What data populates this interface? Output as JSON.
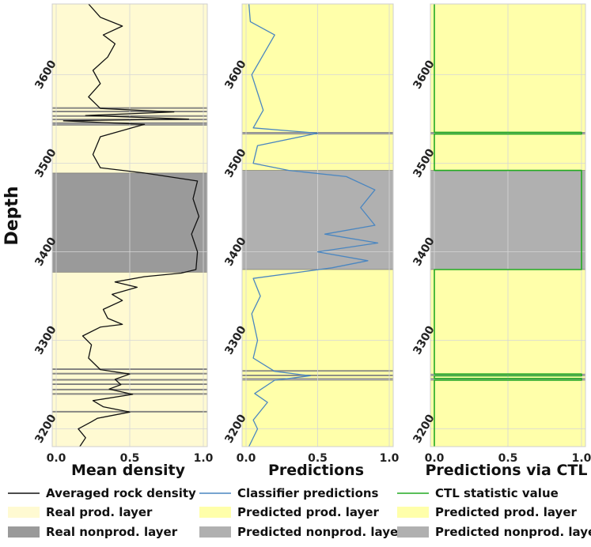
{
  "colors": {
    "prod_layer": "#fffad2",
    "pred_prod_layer": "#ffffaa",
    "nonprod_real": "#9a9a9a",
    "nonprod_pred": "#b0b0b0",
    "density_line": "#111111",
    "classifier_line": "#4a86c0",
    "ctl_line": "#22aa22",
    "grid": "#d6d6d6"
  },
  "chart_data": [
    {
      "type": "line",
      "orientation": "vertical-depth",
      "xlabel": "Mean density",
      "ylabel": "Depth",
      "xlim": [
        0,
        1
      ],
      "ylim": [
        3180,
        3680
      ],
      "xticks": [
        0.0,
        0.5,
        1.0
      ],
      "xtick_labels": [
        "0.0",
        "0.5",
        "1.0"
      ],
      "yticks": [
        3200,
        3300,
        3400,
        3500,
        3600
      ],
      "ytick_labels": [
        "3200",
        "3300",
        "3400",
        "3500",
        "3600"
      ],
      "background_layer": "prod",
      "nonprod_intervals": [
        [
          3377,
          3489
        ],
        [
          3219,
          3220
        ],
        [
          3239,
          3240
        ],
        [
          3244,
          3245
        ],
        [
          3250,
          3251
        ],
        [
          3255,
          3256
        ],
        [
          3262,
          3263
        ],
        [
          3267,
          3268
        ],
        [
          3543,
          3546
        ],
        [
          3549,
          3550
        ],
        [
          3553,
          3554
        ],
        [
          3558,
          3559
        ],
        [
          3562,
          3563
        ]
      ],
      "series": [
        {
          "name": "Averaged rock density",
          "points": [
            [
              0.16,
              3180
            ],
            [
              0.2,
              3190
            ],
            [
              0.15,
              3200
            ],
            [
              0.24,
              3208
            ],
            [
              0.28,
              3212
            ],
            [
              0.5,
              3219
            ],
            [
              0.32,
              3225
            ],
            [
              0.25,
              3232
            ],
            [
              0.52,
              3239
            ],
            [
              0.36,
              3245
            ],
            [
              0.44,
              3250
            ],
            [
              0.4,
              3256
            ],
            [
              0.5,
              3262
            ],
            [
              0.3,
              3267
            ],
            [
              0.22,
              3280
            ],
            [
              0.24,
              3295
            ],
            [
              0.18,
              3305
            ],
            [
              0.3,
              3315
            ],
            [
              0.45,
              3318
            ],
            [
              0.35,
              3325
            ],
            [
              0.32,
              3335
            ],
            [
              0.45,
              3345
            ],
            [
              0.38,
              3352
            ],
            [
              0.55,
              3360
            ],
            [
              0.4,
              3366
            ],
            [
              0.6,
              3372
            ],
            [
              0.85,
              3376
            ],
            [
              0.95,
              3380
            ],
            [
              0.96,
              3400
            ],
            [
              0.92,
              3420
            ],
            [
              0.97,
              3440
            ],
            [
              0.93,
              3460
            ],
            [
              0.96,
              3480
            ],
            [
              0.6,
              3489
            ],
            [
              0.3,
              3495
            ],
            [
              0.25,
              3510
            ],
            [
              0.3,
              3530
            ],
            [
              0.6,
              3544
            ],
            [
              0.05,
              3548
            ],
            [
              0.9,
              3550
            ],
            [
              0.2,
              3554
            ],
            [
              0.8,
              3558
            ],
            [
              0.3,
              3562
            ],
            [
              0.22,
              3575
            ],
            [
              0.3,
              3590
            ],
            [
              0.25,
              3605
            ],
            [
              0.35,
              3620
            ],
            [
              0.4,
              3635
            ],
            [
              0.32,
              3645
            ],
            [
              0.45,
              3655
            ],
            [
              0.3,
              3665
            ],
            [
              0.22,
              3680
            ]
          ]
        }
      ]
    },
    {
      "type": "line",
      "orientation": "vertical-depth",
      "xlabel": "Predictions",
      "xlim": [
        0,
        1
      ],
      "ylim": [
        3180,
        3680
      ],
      "xticks": [
        0.0,
        0.5,
        1.0
      ],
      "xtick_labels": [
        "0.0",
        "0.5",
        "1.0"
      ],
      "yticks": [
        3200,
        3300,
        3400,
        3500,
        3600
      ],
      "ytick_labels": [
        "3200",
        "3300",
        "3400",
        "3500",
        "3600"
      ],
      "background_layer": "pred",
      "nonprod_intervals": [
        [
          3380,
          3492
        ],
        [
          3255,
          3257
        ],
        [
          3260,
          3261
        ],
        [
          3265,
          3266
        ],
        [
          3533,
          3535
        ]
      ],
      "series": [
        {
          "name": "Classifier predictions",
          "points": [
            [
              0.02,
              3180
            ],
            [
              0.08,
              3200
            ],
            [
              0.05,
              3210
            ],
            [
              0.15,
              3230
            ],
            [
              0.06,
              3240
            ],
            [
              0.2,
              3255
            ],
            [
              0.45,
              3260
            ],
            [
              0.2,
              3265
            ],
            [
              0.05,
              3280
            ],
            [
              0.08,
              3300
            ],
            [
              0.04,
              3330
            ],
            [
              0.1,
              3350
            ],
            [
              0.05,
              3370
            ],
            [
              0.6,
              3382
            ],
            [
              0.85,
              3390
            ],
            [
              0.5,
              3400
            ],
            [
              0.92,
              3410
            ],
            [
              0.55,
              3420
            ],
            [
              0.9,
              3430
            ],
            [
              0.8,
              3450
            ],
            [
              0.9,
              3470
            ],
            [
              0.7,
              3485
            ],
            [
              0.3,
              3492
            ],
            [
              0.05,
              3500
            ],
            [
              0.08,
              3520
            ],
            [
              0.5,
              3534
            ],
            [
              0.05,
              3540
            ],
            [
              0.12,
              3560
            ],
            [
              0.04,
              3600
            ],
            [
              0.2,
              3645
            ],
            [
              0.03,
              3660
            ],
            [
              0.02,
              3680
            ]
          ]
        }
      ]
    },
    {
      "type": "line",
      "orientation": "vertical-depth",
      "xlabel": "Predictions via CTL",
      "xlim": [
        0,
        1
      ],
      "ylim": [
        3180,
        3680
      ],
      "xticks": [
        0.0,
        0.5,
        1.0
      ],
      "xtick_labels": [
        "0.0",
        "0.5",
        "1.0"
      ],
      "yticks": [
        3200,
        3300,
        3400,
        3500,
        3600
      ],
      "ytick_labels": [
        "3200",
        "3300",
        "3400",
        "3500",
        "3600"
      ],
      "background_layer": "pred",
      "nonprod_intervals": [
        [
          3380,
          3492
        ],
        [
          3255,
          3257
        ],
        [
          3260,
          3262
        ],
        [
          3533,
          3535
        ]
      ],
      "series": [
        {
          "name": "CTL statistic value",
          "points": [
            [
              0,
              3180
            ],
            [
              0,
              3255
            ],
            [
              1,
              3255
            ],
            [
              1,
              3257
            ],
            [
              0,
              3257
            ],
            [
              0,
              3260
            ],
            [
              1,
              3260
            ],
            [
              1,
              3262
            ],
            [
              0,
              3262
            ],
            [
              0,
              3380
            ],
            [
              1,
              3380
            ],
            [
              1,
              3492
            ],
            [
              0,
              3492
            ],
            [
              0,
              3533
            ],
            [
              1,
              3533
            ],
            [
              1,
              3535
            ],
            [
              0,
              3535
            ],
            [
              0,
              3680
            ]
          ]
        }
      ]
    }
  ],
  "legend": [
    [
      {
        "label": "Averaged rock density",
        "kind": "line",
        "color_key": "density_line"
      },
      {
        "label": "Real prod. layer",
        "kind": "patch",
        "color_key": "prod_layer"
      },
      {
        "label": "Real nonprod. layer",
        "kind": "patch",
        "color_key": "nonprod_real"
      }
    ],
    [
      {
        "label": "Classifier predictions",
        "kind": "line",
        "color_key": "classifier_line"
      },
      {
        "label": "Predicted prod. layer",
        "kind": "patch",
        "color_key": "pred_prod_layer"
      },
      {
        "label": "Predicted nonprod. layer",
        "kind": "patch",
        "color_key": "nonprod_pred"
      }
    ],
    [
      {
        "label": "CTL statistic value",
        "kind": "line",
        "color_key": "ctl_line"
      },
      {
        "label": "Predicted prod. layer",
        "kind": "patch",
        "color_key": "pred_prod_layer"
      },
      {
        "label": "Predicted nonprod. layer",
        "kind": "patch",
        "color_key": "nonprod_pred"
      }
    ]
  ]
}
